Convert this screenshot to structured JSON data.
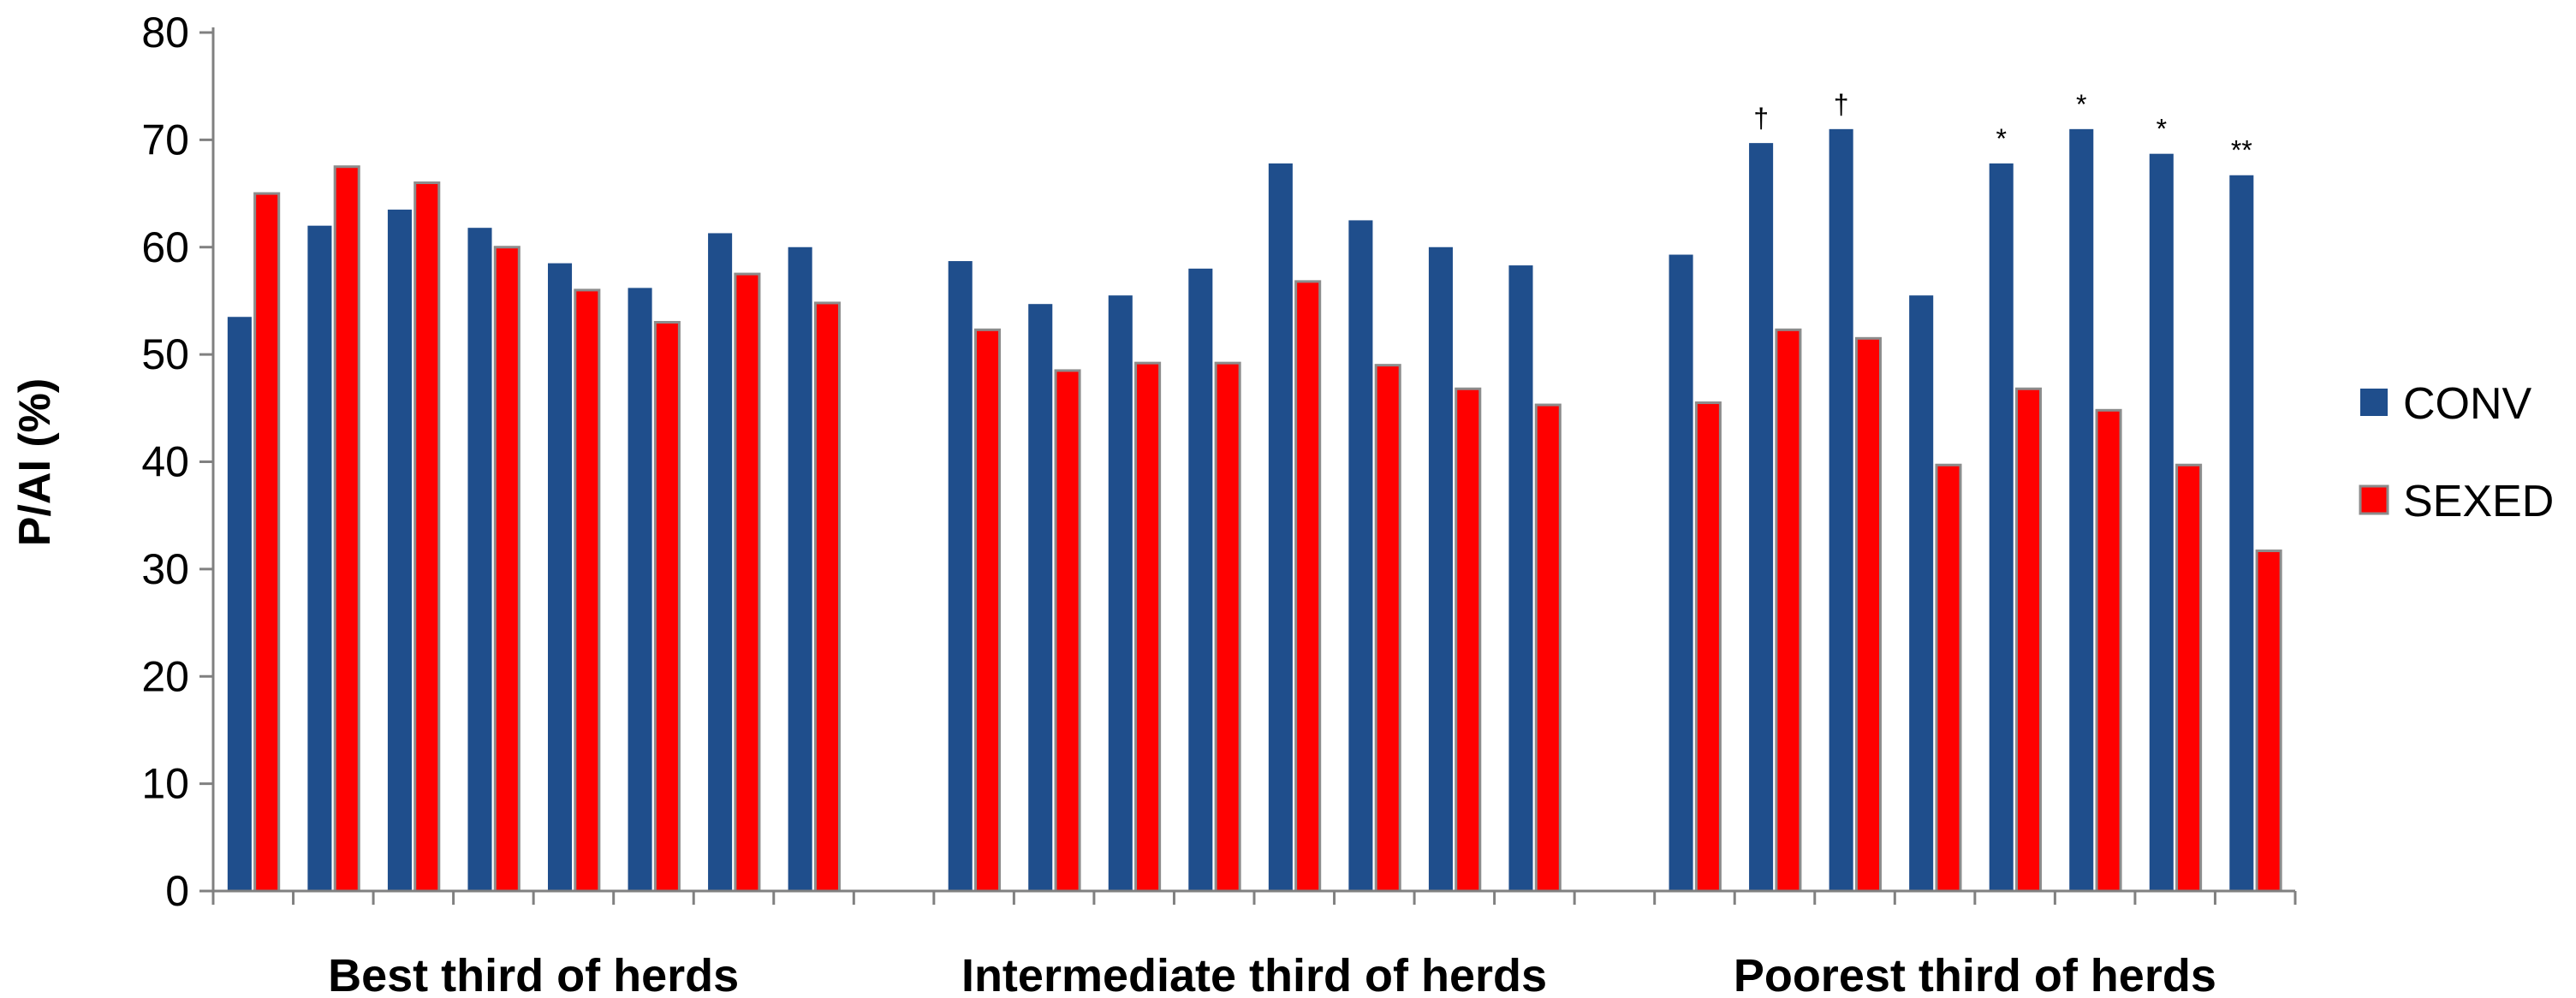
{
  "chart_data": {
    "type": "bar",
    "ylabel": "P/AI (%)",
    "ylim": [
      0,
      80
    ],
    "yticks": [
      0,
      10,
      20,
      30,
      40,
      50,
      60,
      70,
      80
    ],
    "grid": false,
    "legend_position": "right",
    "groups": [
      {
        "label": "Best third of herds",
        "bars": [
          {
            "conv": 53.5,
            "sexed": 65.0,
            "annotation": ""
          },
          {
            "conv": 62.0,
            "sexed": 67.5,
            "annotation": ""
          },
          {
            "conv": 63.5,
            "sexed": 66.0,
            "annotation": ""
          },
          {
            "conv": 61.8,
            "sexed": 60.0,
            "annotation": ""
          },
          {
            "conv": 58.5,
            "sexed": 56.0,
            "annotation": ""
          },
          {
            "conv": 56.2,
            "sexed": 53.0,
            "annotation": ""
          },
          {
            "conv": 61.3,
            "sexed": 57.5,
            "annotation": ""
          },
          {
            "conv": 60.0,
            "sexed": 54.8,
            "annotation": ""
          }
        ]
      },
      {
        "label": "Intermediate third of herds",
        "bars": [
          {
            "conv": 58.7,
            "sexed": 52.3,
            "annotation": ""
          },
          {
            "conv": 54.7,
            "sexed": 48.5,
            "annotation": ""
          },
          {
            "conv": 55.5,
            "sexed": 49.2,
            "annotation": ""
          },
          {
            "conv": 58.0,
            "sexed": 49.2,
            "annotation": ""
          },
          {
            "conv": 67.8,
            "sexed": 56.8,
            "annotation": ""
          },
          {
            "conv": 62.5,
            "sexed": 49.0,
            "annotation": ""
          },
          {
            "conv": 60.0,
            "sexed": 46.8,
            "annotation": ""
          },
          {
            "conv": 58.3,
            "sexed": 45.3,
            "annotation": ""
          }
        ]
      },
      {
        "label": "Poorest third of herds",
        "bars": [
          {
            "conv": 59.3,
            "sexed": 45.5,
            "annotation": ""
          },
          {
            "conv": 69.7,
            "sexed": 52.3,
            "annotation": "†"
          },
          {
            "conv": 71.0,
            "sexed": 51.5,
            "annotation": "†"
          },
          {
            "conv": 55.5,
            "sexed": 39.7,
            "annotation": ""
          },
          {
            "conv": 67.8,
            "sexed": 46.8,
            "annotation": "*"
          },
          {
            "conv": 71.0,
            "sexed": 44.8,
            "annotation": "*"
          },
          {
            "conv": 68.7,
            "sexed": 39.7,
            "annotation": "*"
          },
          {
            "conv": 66.7,
            "sexed": 31.7,
            "annotation": "**"
          }
        ]
      }
    ],
    "series": [
      {
        "name": "CONV",
        "color": "#1F4E8C"
      },
      {
        "name": "SEXED",
        "color": "#FF0000"
      }
    ]
  }
}
